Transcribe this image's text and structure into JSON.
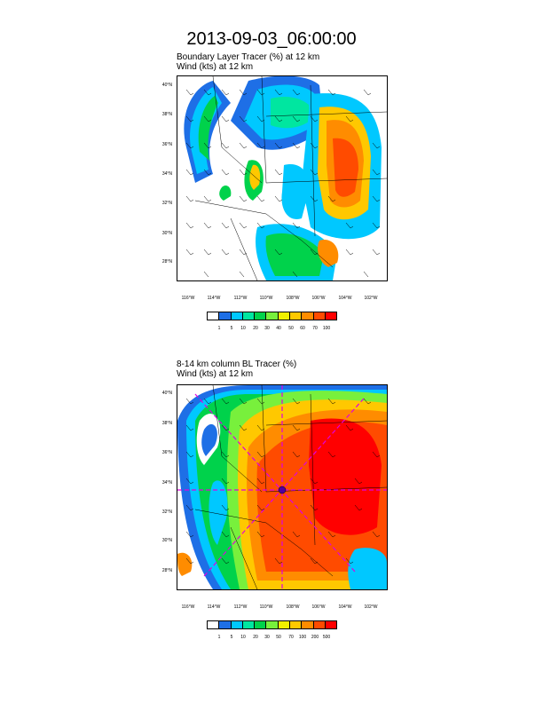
{
  "title": "2013-09-03_06:00:00",
  "panels": [
    {
      "subtitle_line1": "Boundary Layer Tracer   (%)      at   12 km",
      "subtitle_line2": "Wind    (kts)       at   12 km",
      "lat_ticks": [
        "40°N",
        "38°N",
        "36°N",
        "34°N",
        "32°N",
        "30°N",
        "28°N"
      ],
      "lon_ticks": [
        "116°W",
        "114°W",
        "112°W",
        "110°W",
        "108°W",
        "106°W",
        "104°W",
        "102°W"
      ],
      "colorbar_labels": [
        "1",
        "5",
        "10",
        "20",
        "30",
        "40",
        "50",
        "60",
        "70",
        "100"
      ]
    },
    {
      "subtitle_line1": "8-14 km column BL Tracer    (%)",
      "subtitle_line2": "Wind    (kts)       at   12 km",
      "lat_ticks": [
        "40°N",
        "38°N",
        "36°N",
        "34°N",
        "32°N",
        "30°N",
        "28°N"
      ],
      "lon_ticks": [
        "116°W",
        "114°W",
        "112°W",
        "110°W",
        "108°W",
        "106°W",
        "104°W",
        "102°W"
      ],
      "colorbar_labels": [
        "1",
        "5",
        "10",
        "20",
        "30",
        "50",
        "70",
        "100",
        "200",
        "500"
      ]
    }
  ],
  "colorbar_colors": [
    "#ffffff",
    "#1e6fe6",
    "#00c8ff",
    "#00e6a0",
    "#00d24b",
    "#78f03c",
    "#f0f000",
    "#ffc800",
    "#ff8c00",
    "#ff4b00",
    "#ff0000"
  ]
}
